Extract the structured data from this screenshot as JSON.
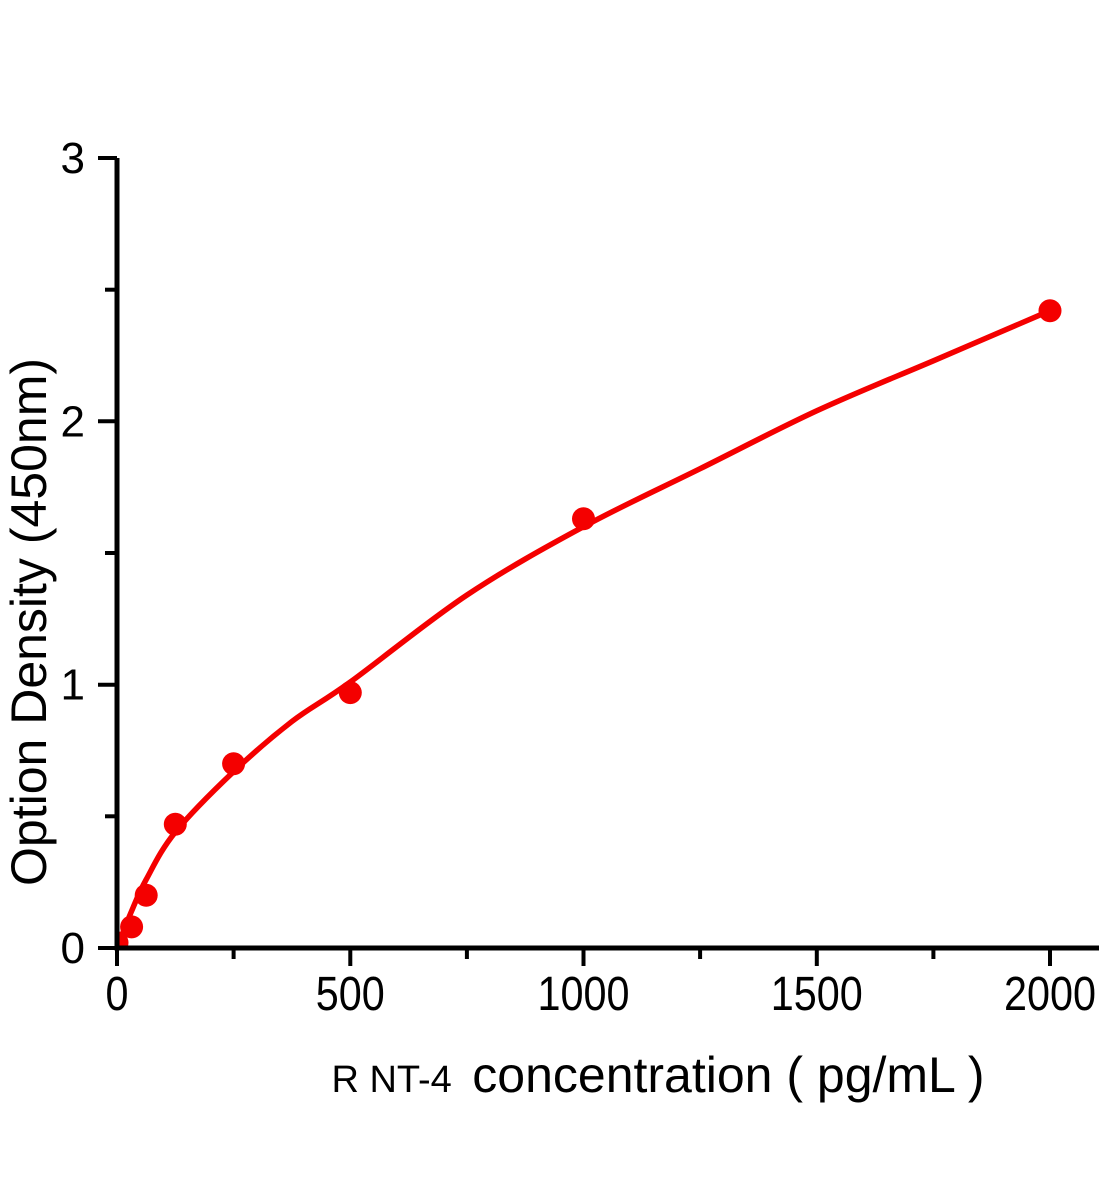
{
  "chart_data": {
    "type": "scatter",
    "title": "",
    "xlabel_prefix": "R NT-4",
    "xlabel_main": "concentration ( pg/mL )",
    "ylabel": "Option Density  (450nm)",
    "series": [
      {
        "name": "standard-points",
        "x": [
          0,
          31.25,
          62.5,
          125,
          250,
          500,
          1000,
          2000
        ],
        "y": [
          0.02,
          0.08,
          0.2,
          0.47,
          0.7,
          0.97,
          1.63,
          2.42
        ]
      }
    ],
    "fit_curve": [
      [
        0,
        0
      ],
      [
        31.25,
        0.14
      ],
      [
        62.5,
        0.26
      ],
      [
        125,
        0.44
      ],
      [
        250,
        0.67
      ],
      [
        375,
        0.86
      ],
      [
        500,
        1.01
      ],
      [
        750,
        1.34
      ],
      [
        1000,
        1.6
      ],
      [
        1250,
        1.82
      ],
      [
        1500,
        2.04
      ],
      [
        1750,
        2.23
      ],
      [
        2000,
        2.42
      ]
    ],
    "x_axis": {
      "tick_values": [
        0,
        500,
        1000,
        1500,
        2000
      ],
      "tick_labels": [
        "0",
        "500",
        "1000",
        "1500",
        "2000"
      ],
      "minor_ticks": [
        250,
        750,
        1250,
        1750
      ],
      "range": [
        0,
        2105
      ]
    },
    "y_axis": {
      "tick_values": [
        0,
        1,
        2,
        3
      ],
      "tick_labels": [
        "0",
        "1",
        "2",
        "3"
      ],
      "minor_ticks": [
        0.5,
        1.5,
        2.5
      ],
      "range": [
        0,
        3
      ]
    },
    "legend": "none",
    "grid": "off",
    "colors": {
      "accent": "#f40000",
      "axis": "#000000",
      "background": "#ffffff"
    }
  }
}
